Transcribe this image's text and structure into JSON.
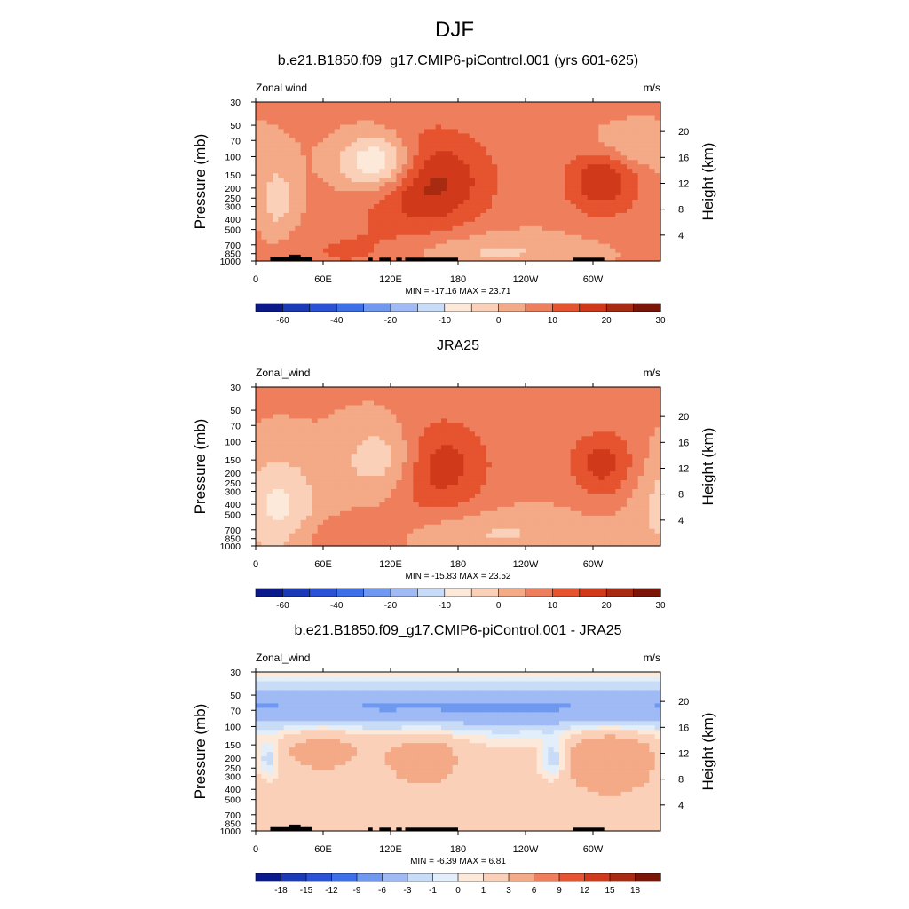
{
  "page": {
    "title": "DJF"
  },
  "chart_data": [
    {
      "type": "heatmap",
      "title": "b.e21.B1850.f09_g17.CMIP6-piControl.001 (yrs 601-625)",
      "left_label": "Zonal wind",
      "units": "m/s",
      "ylabel": "Pressure (mb)",
      "ylabel_right": "Height (km)",
      "x_ticks": [
        "0",
        "60E",
        "120E",
        "180",
        "120W",
        "60W"
      ],
      "y_ticks": [
        "30",
        "50",
        "70",
        "100",
        "150",
        "200",
        "250",
        "300",
        "400",
        "500",
        "700",
        "850",
        "1000"
      ],
      "y_ticks_right": [
        "20",
        "16",
        "12",
        "8",
        "4"
      ],
      "xlim": [
        0,
        360
      ],
      "ylim": [
        1000,
        30
      ],
      "stats": "MIN = -17.16  MAX =  23.71",
      "colorbar_labels": [
        "-60",
        "-40",
        "-20",
        "-10",
        "0",
        "10",
        "20",
        "30"
      ],
      "features": [
        {
          "kind": "jet",
          "lon": 150,
          "p": 170,
          "peak": 23.71
        },
        {
          "kind": "jet",
          "lon": 308,
          "p": 160,
          "peak": 20
        },
        {
          "kind": "easterly",
          "lon": 110,
          "p": 115,
          "peak": -17.16
        }
      ]
    },
    {
      "type": "heatmap",
      "title": "JRA25",
      "left_label": "Zonal_wind",
      "units": "m/s",
      "ylabel": "Pressure (mb)",
      "ylabel_right": "Height (km)",
      "x_ticks": [
        "0",
        "60E",
        "120E",
        "180",
        "120W",
        "60W"
      ],
      "y_ticks": [
        "30",
        "50",
        "70",
        "100",
        "150",
        "200",
        "250",
        "300",
        "400",
        "500",
        "700",
        "850",
        "1000"
      ],
      "y_ticks_right": [
        "20",
        "16",
        "12",
        "8",
        "4"
      ],
      "xlim": [
        0,
        360
      ],
      "ylim": [
        1000,
        30
      ],
      "stats": "MIN = -15.83  MAX =  23.52",
      "colorbar_labels": [
        "-60",
        "-40",
        "-20",
        "-10",
        "0",
        "10",
        "20",
        "30"
      ],
      "features": [
        {
          "kind": "jet",
          "lon": 150,
          "p": 165,
          "peak": 23.52
        },
        {
          "kind": "jet",
          "lon": 308,
          "p": 160,
          "peak": 18
        },
        {
          "kind": "easterly",
          "lon": 120,
          "p": 150,
          "peak": -15.83
        }
      ]
    },
    {
      "type": "heatmap",
      "title": "b.e21.B1850.f09_g17.CMIP6-piControl.001 - JRA25",
      "left_label": "Zonal_wind",
      "units": "m/s",
      "ylabel": "Pressure (mb)",
      "ylabel_right": "Height (km)",
      "x_ticks": [
        "0",
        "60E",
        "120E",
        "180",
        "120W",
        "60W"
      ],
      "y_ticks": [
        "30",
        "50",
        "70",
        "100",
        "150",
        "200",
        "250",
        "300",
        "400",
        "500",
        "700",
        "850",
        "1000"
      ],
      "y_ticks_right": [
        "20",
        "16",
        "12",
        "8",
        "4"
      ],
      "xlim": [
        0,
        360
      ],
      "ylim": [
        1000,
        30
      ],
      "stats": "MIN =  -6.39  MAX =   6.81",
      "colorbar_labels": [
        "-18",
        "-15",
        "-12",
        "-9",
        "-6",
        "-3",
        "-1",
        "0",
        "1",
        "3",
        "6",
        "9",
        "12",
        "15",
        "18"
      ],
      "features": [
        {
          "kind": "negative_band",
          "p": 65,
          "peak": -6.39
        },
        {
          "kind": "positive_region",
          "lon": 315,
          "p": 200,
          "peak": 6.81
        }
      ]
    }
  ],
  "colors": {
    "full_scale": [
      "#0a1a8c",
      "#1a3ab8",
      "#2a52d6",
      "#3d6fe8",
      "#6f98f0",
      "#9fbaf5",
      "#c8dcf7",
      "#fde9d9",
      "#fbd0b8",
      "#f4a987",
      "#ef7e5c",
      "#e6532f",
      "#d03a1a",
      "#a82a10",
      "#7a1508"
    ],
    "diff_scale": [
      "#0a1a8c",
      "#1a3ab8",
      "#2a52d6",
      "#3d6fe8",
      "#6f98f0",
      "#9fbaf5",
      "#c8dcf7",
      "#e3eefb",
      "#fde9d9",
      "#fbd0b8",
      "#f4a987",
      "#ef7e5c",
      "#e6532f",
      "#d03a1a",
      "#a82a10",
      "#7a1508"
    ],
    "topography": "#000000"
  }
}
